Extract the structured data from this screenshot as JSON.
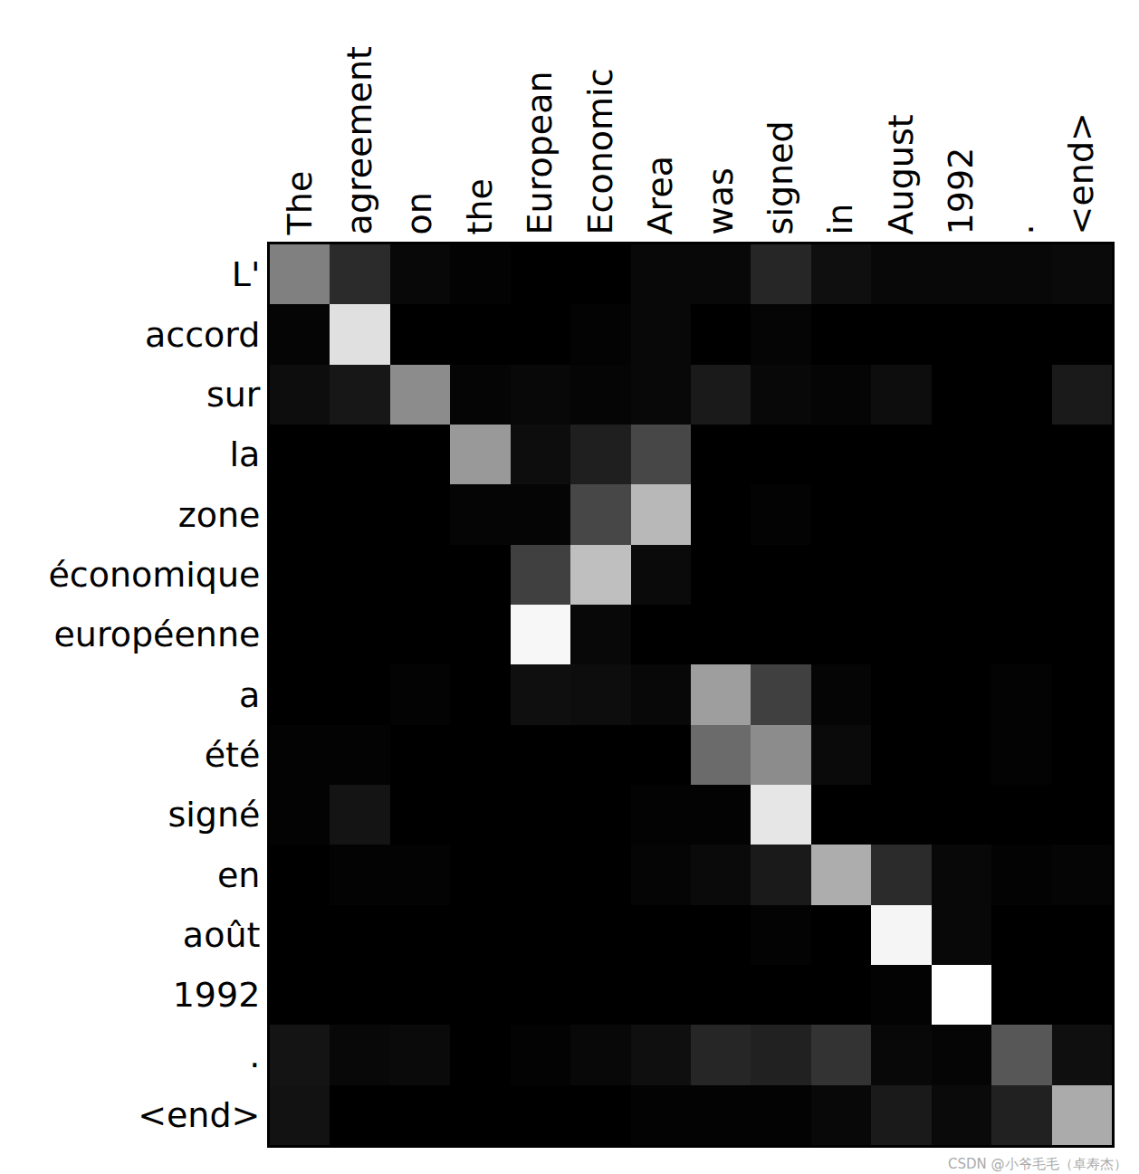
{
  "chart_data": {
    "type": "heatmap",
    "x": [
      "The",
      "agreement",
      "on",
      "the",
      "European",
      "Economic",
      "Area",
      "was",
      "signed",
      "in",
      "August",
      "1992",
      ".",
      "<end>"
    ],
    "y": [
      "L'",
      "accord",
      "sur",
      "la",
      "zone",
      "économique",
      "européenne",
      "a",
      "été",
      "signé",
      "en",
      "août",
      "1992",
      ".",
      "<end>"
    ],
    "z": [
      [
        0.5,
        0.17,
        0.03,
        0.01,
        0.0,
        0.0,
        0.03,
        0.03,
        0.15,
        0.06,
        0.03,
        0.03,
        0.03,
        0.04
      ],
      [
        0.02,
        0.88,
        0.0,
        0.0,
        0.0,
        0.01,
        0.03,
        0.0,
        0.02,
        0.0,
        0.0,
        0.0,
        0.0,
        0.0
      ],
      [
        0.05,
        0.09,
        0.55,
        0.02,
        0.03,
        0.02,
        0.03,
        0.1,
        0.03,
        0.02,
        0.05,
        0.0,
        0.0,
        0.1
      ],
      [
        0.0,
        0.0,
        0.0,
        0.6,
        0.05,
        0.12,
        0.28,
        0.0,
        0.0,
        0.0,
        0.0,
        0.0,
        0.0,
        0.0
      ],
      [
        0.0,
        0.0,
        0.0,
        0.02,
        0.02,
        0.28,
        0.72,
        0.0,
        0.01,
        0.0,
        0.0,
        0.0,
        0.0,
        0.0
      ],
      [
        0.0,
        0.0,
        0.0,
        0.0,
        0.25,
        0.75,
        0.04,
        0.0,
        0.0,
        0.0,
        0.0,
        0.0,
        0.0,
        0.0
      ],
      [
        0.0,
        0.0,
        0.0,
        0.0,
        0.97,
        0.03,
        0.0,
        0.0,
        0.0,
        0.0,
        0.0,
        0.0,
        0.0,
        0.0
      ],
      [
        0.0,
        0.0,
        0.01,
        0.0,
        0.06,
        0.05,
        0.03,
        0.62,
        0.25,
        0.02,
        0.0,
        0.0,
        0.01,
        0.0
      ],
      [
        0.01,
        0.01,
        0.0,
        0.0,
        0.0,
        0.0,
        0.0,
        0.42,
        0.55,
        0.04,
        0.0,
        0.0,
        0.01,
        0.0
      ],
      [
        0.01,
        0.08,
        0.0,
        0.0,
        0.0,
        0.0,
        0.01,
        0.01,
        0.9,
        0.0,
        0.0,
        0.0,
        0.0,
        0.0
      ],
      [
        0.0,
        0.01,
        0.01,
        0.0,
        0.0,
        0.0,
        0.02,
        0.04,
        0.1,
        0.68,
        0.17,
        0.03,
        0.01,
        0.02
      ],
      [
        0.0,
        0.0,
        0.0,
        0.0,
        0.0,
        0.0,
        0.0,
        0.0,
        0.01,
        0.0,
        0.96,
        0.03,
        0.0,
        0.0
      ],
      [
        0.0,
        0.0,
        0.0,
        0.0,
        0.0,
        0.0,
        0.0,
        0.0,
        0.0,
        0.0,
        0.01,
        1.0,
        0.0,
        0.0
      ],
      [
        0.08,
        0.03,
        0.04,
        0.0,
        0.01,
        0.03,
        0.06,
        0.15,
        0.13,
        0.2,
        0.03,
        0.02,
        0.34,
        0.06
      ],
      [
        0.07,
        0.0,
        0.0,
        0.0,
        0.0,
        0.0,
        0.01,
        0.01,
        0.01,
        0.03,
        0.1,
        0.04,
        0.13,
        0.67
      ]
    ],
    "zlim": [
      0,
      1
    ],
    "colors": [
      "#000000",
      "#ffffff"
    ],
    "grid": false,
    "annotations": [
      "CSDN @小爷毛毛（卓寿杰）"
    ]
  }
}
